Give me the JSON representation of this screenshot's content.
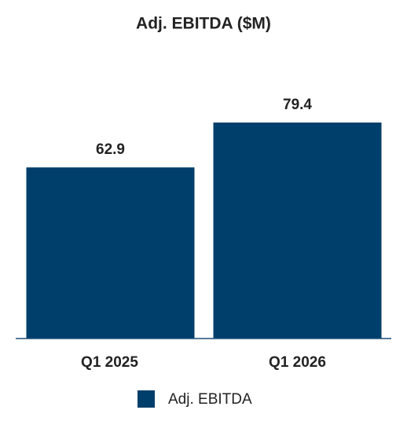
{
  "chart_data": {
    "type": "bar",
    "title": "Adj. EBITDA ($M)",
    "categories": [
      "Q1 2025",
      "Q1 2026"
    ],
    "series": [
      {
        "name": "Adj. EBITDA",
        "color": "#003f6b",
        "values": [
          62.9,
          79.4
        ]
      }
    ],
    "legend": "bottom"
  }
}
